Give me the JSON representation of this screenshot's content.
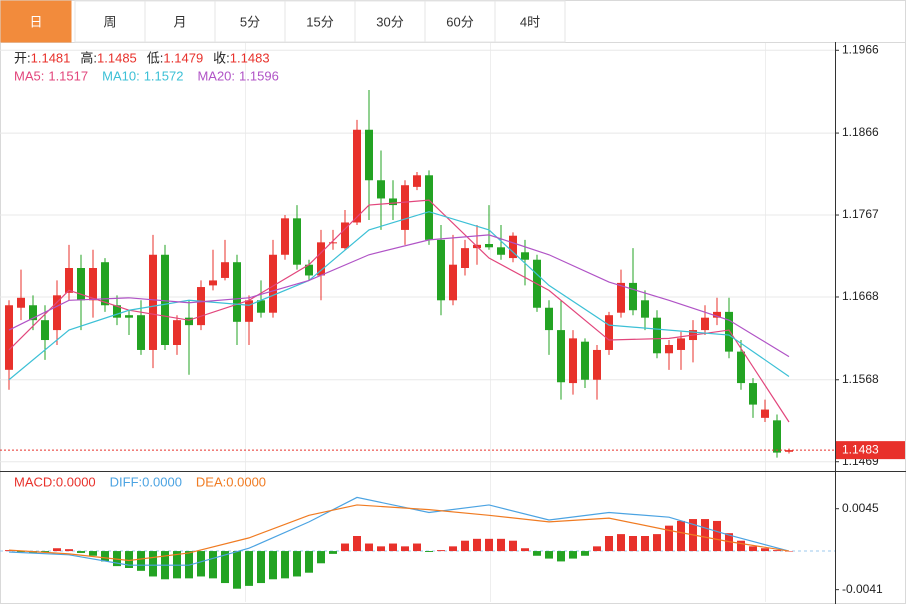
{
  "tabs": [
    "日",
    "周",
    "月",
    "5分",
    "15分",
    "30分",
    "60分",
    "4时"
  ],
  "active_tab": 0,
  "chart_data": [
    {
      "type": "candlestick",
      "ohlc_labels": [
        "开:",
        "高:",
        "低:",
        "收:"
      ],
      "up_color": "#e8312b",
      "down_color": "#23a323",
      "label_color": "#e8312b",
      "open": [
        1.158,
        1.1655,
        1.1658,
        1.164,
        1.1628,
        1.1673,
        1.1703,
        1.1664,
        1.171,
        1.1658,
        1.1646,
        1.1646,
        1.1604,
        1.1719,
        1.161,
        1.1643,
        1.1634,
        1.1682,
        1.1691,
        1.171,
        1.1638,
        1.1664,
        1.1649,
        1.1719,
        1.1763,
        1.1707,
        1.1694,
        1.1733,
        1.1727,
        1.1758,
        1.187,
        1.1809,
        1.1787,
        1.1749,
        1.1801,
        1.1815,
        1.1737,
        1.1664,
        1.1703,
        1.1727,
        1.1732,
        1.1728,
        1.1715,
        1.1722,
        1.1713,
        1.1655,
        1.1628,
        1.1564,
        1.1614,
        1.1568,
        1.1604,
        1.1649,
        1.1685,
        1.1664,
        1.1643,
        1.16,
        1.1604,
        1.1616,
        1.1628,
        1.1643,
        1.165,
        1.1602,
        1.1564,
        1.1522,
        1.1519,
        1.1481
      ],
      "high": [
        1.1664,
        1.1701,
        1.167,
        1.1658,
        1.1688,
        1.1731,
        1.1719,
        1.1725,
        1.1715,
        1.167,
        1.1652,
        1.1664,
        1.1743,
        1.1731,
        1.1646,
        1.1664,
        1.1688,
        1.1725,
        1.1737,
        1.1719,
        1.167,
        1.1688,
        1.1737,
        1.1767,
        1.1779,
        1.1713,
        1.1749,
        1.1749,
        1.1773,
        1.1882,
        1.1918,
        1.1845,
        1.1809,
        1.1809,
        1.1819,
        1.1821,
        1.1755,
        1.1743,
        1.1737,
        1.1755,
        1.1779,
        1.1755,
        1.1746,
        1.1737,
        1.1719,
        1.1664,
        1.1664,
        1.1628,
        1.1618,
        1.161,
        1.165,
        1.1701,
        1.1727,
        1.1676,
        1.1652,
        1.1616,
        1.1626,
        1.164,
        1.1658,
        1.1667,
        1.1667,
        1.1616,
        1.157,
        1.1544,
        1.1526,
        1.1485
      ],
      "low": [
        1.1556,
        1.164,
        1.1628,
        1.1592,
        1.161,
        1.1664,
        1.1628,
        1.1643,
        1.165,
        1.1634,
        1.1622,
        1.1598,
        1.1582,
        1.1604,
        1.1598,
        1.1574,
        1.1628,
        1.1676,
        1.1688,
        1.161,
        1.161,
        1.1643,
        1.1643,
        1.1713,
        1.1701,
        1.1688,
        1.1664,
        1.1725,
        1.1725,
        1.1755,
        1.1761,
        1.1749,
        1.1761,
        1.1731,
        1.1797,
        1.1731,
        1.1646,
        1.1658,
        1.1694,
        1.1707,
        1.1725,
        1.1713,
        1.171,
        1.1682,
        1.165,
        1.1598,
        1.1544,
        1.155,
        1.1558,
        1.1544,
        1.1598,
        1.1643,
        1.1646,
        1.1628,
        1.1594,
        1.158,
        1.158,
        1.1589,
        1.1622,
        1.1634,
        1.1594,
        1.1556,
        1.1522,
        1.1517,
        1.1474,
        1.1479
      ],
      "close": [
        1.1658,
        1.1667,
        1.164,
        1.1616,
        1.167,
        1.1703,
        1.1664,
        1.1703,
        1.1658,
        1.1643,
        1.1643,
        1.1604,
        1.1719,
        1.161,
        1.164,
        1.1634,
        1.168,
        1.1688,
        1.171,
        1.1638,
        1.1664,
        1.1649,
        1.1719,
        1.1763,
        1.1707,
        1.1694,
        1.1734,
        1.1734,
        1.1758,
        1.187,
        1.1809,
        1.1787,
        1.1779,
        1.1803,
        1.1815,
        1.1737,
        1.1664,
        1.1707,
        1.1727,
        1.1731,
        1.1728,
        1.1719,
        1.1742,
        1.1713,
        1.1655,
        1.1628,
        1.1565,
        1.1618,
        1.1568,
        1.1604,
        1.1646,
        1.1685,
        1.1652,
        1.1643,
        1.16,
        1.161,
        1.1618,
        1.1628,
        1.1643,
        1.165,
        1.1602,
        1.1564,
        1.1538,
        1.1532,
        1.148,
        1.1483
      ],
      "series": [
        {
          "name": "MA5:",
          "color": "#e2467c",
          "x": [
            0,
            5,
            10,
            15,
            20,
            25,
            30,
            35,
            40,
            45,
            50,
            55,
            60,
            65
          ],
          "values": [
            1.1604,
            1.1676,
            1.1652,
            1.164,
            1.1664,
            1.1707,
            1.1779,
            1.1785,
            1.1715,
            1.1676,
            1.1616,
            1.1618,
            1.1628,
            1.1517
          ]
        },
        {
          "name": "MA10:",
          "color": "#3cc0d6",
          "x": [
            0,
            5,
            10,
            15,
            20,
            25,
            30,
            35,
            40,
            45,
            50,
            55,
            60,
            65
          ],
          "values": [
            1.1568,
            1.1628,
            1.1652,
            1.1664,
            1.1658,
            1.1688,
            1.1749,
            1.1771,
            1.1749,
            1.1682,
            1.1634,
            1.1628,
            1.1622,
            1.1572
          ]
        },
        {
          "name": "MA20:",
          "color": "#b053c6",
          "x": [
            0,
            5,
            10,
            15,
            20,
            25,
            30,
            35,
            40,
            45,
            50,
            55,
            60,
            65
          ],
          "values": [
            1.1628,
            1.1664,
            1.1667,
            1.1661,
            1.1667,
            1.1688,
            1.1719,
            1.1737,
            1.1743,
            1.1719,
            1.1686,
            1.1664,
            1.164,
            1.1596
          ]
        }
      ],
      "ylim": [
        1.1459,
        1.1976
      ],
      "yticks": [
        1.1966,
        1.1866,
        1.1767,
        1.1668,
        1.1568,
        1.1469
      ],
      "grid": true
    },
    {
      "type": "bar",
      "up_color": "#e8312b",
      "down_color": "#23a323",
      "ylim": [
        -0.0052,
        0.0084
      ],
      "yticks": [
        0.0045,
        -0.0041
      ],
      "grid": false,
      "series": [
        {
          "name": "MACD:",
          "value_label": "0.0000",
          "color": "#e8312b",
          "values": [
            0.0001,
            -0.0001,
            -0.0002,
            -0.0001,
            0.0003,
            0.0002,
            -0.0002,
            -0.0005,
            -0.0011,
            -0.0016,
            -0.0018,
            -0.0021,
            -0.0027,
            -0.003,
            -0.0029,
            -0.0029,
            -0.0027,
            -0.0029,
            -0.0034,
            -0.004,
            -0.0037,
            -0.0034,
            -0.003,
            -0.0029,
            -0.0027,
            -0.0023,
            -0.0013,
            -0.0003,
            0.0008,
            0.0016,
            0.0008,
            0.0005,
            0.0008,
            0.0005,
            0.0008,
            -0.0001,
            0.0001,
            0.0005,
            0.0011,
            0.0013,
            0.0013,
            0.0013,
            0.0011,
            0.0003,
            -0.0005,
            -0.0008,
            -0.0011,
            -0.0008,
            -0.0005,
            0.0005,
            0.0016,
            0.0018,
            0.0016,
            0.0016,
            0.0018,
            0.0027,
            0.0032,
            0.0034,
            0.0034,
            0.0032,
            0.0019,
            0.0011,
            0.0005,
            0.0003,
            0.0001,
            0
          ]
        },
        {
          "name": "DIFF:",
          "value_label": "0.0000",
          "color": "#4ba3e2",
          "x": [
            0,
            5,
            10,
            15,
            20,
            25,
            29,
            35,
            40,
            45,
            50,
            55,
            60,
            65
          ],
          "values": [
            -0.0001,
            -0.0004,
            -0.0015,
            -0.0015,
            0.0003,
            0.0031,
            0.0057,
            0.0041,
            0.0049,
            0.0033,
            0.0041,
            0.0036,
            0.0017,
            0
          ]
        },
        {
          "name": "DEA:",
          "value_label": "0.0000",
          "color": "#f07b22",
          "x": [
            0,
            5,
            10,
            15,
            20,
            25,
            29,
            35,
            40,
            45,
            50,
            55,
            60,
            65
          ],
          "values": [
            0.0001,
            -0.0003,
            -0.001,
            -0.0002,
            0.0014,
            0.0038,
            0.0049,
            0.0044,
            0.0038,
            0.0031,
            0.0035,
            0.0022,
            0.001,
            0
          ]
        }
      ]
    }
  ]
}
